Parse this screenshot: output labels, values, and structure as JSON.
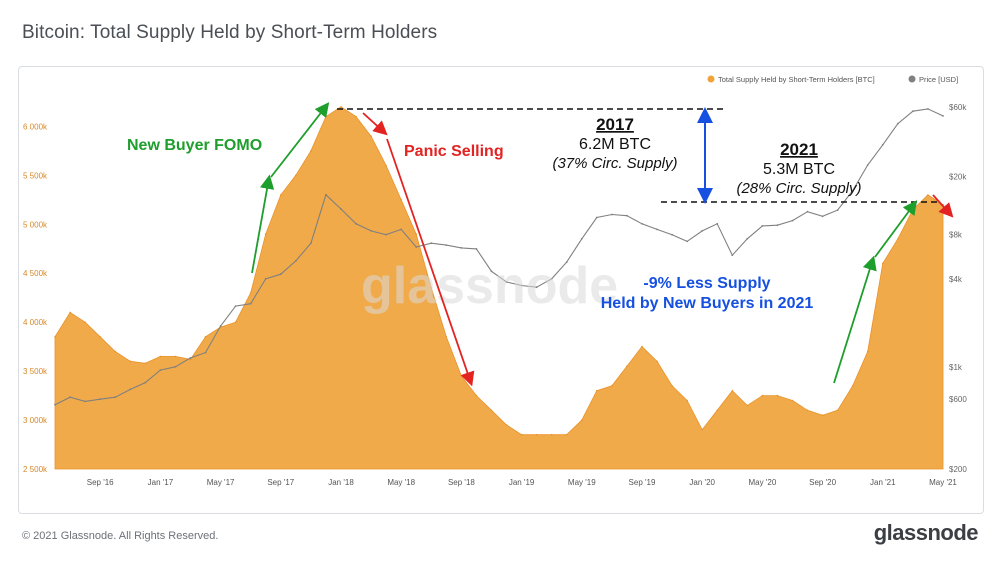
{
  "page": {
    "title": "Bitcoin: Total Supply Held by Short-Term Holders",
    "copyright": "© 2021 Glassnode. All Rights Reserved.",
    "logo": "glassnode",
    "watermark": "glassnode"
  },
  "annotations": {
    "fomo": "New Buyer FOMO",
    "panic": "Panic Selling",
    "y2017_year": "2017",
    "y2017_value": "6.2M BTC",
    "y2017_pct": "(37% Circ. Supply)",
    "y2021_year": "2021",
    "y2021_value": "5.3M BTC",
    "y2021_pct": "(28% Circ. Supply)",
    "less_line1": "-9% Less Supply",
    "less_line2": "Held by New Buyers in 2021"
  },
  "colors": {
    "supply": "#f0a33a",
    "price": "#808080",
    "green": "#1e9e2c",
    "red": "#e32222",
    "blue": "#1550e0"
  },
  "chart_data": {
    "type": "area",
    "x_ticks": [
      "Sep '16",
      "Jan '17",
      "May '17",
      "Sep '17",
      "Jan '18",
      "May '18",
      "Sep '18",
      "Jan '19",
      "May '19",
      "Sep '19",
      "Jan '20",
      "May '20",
      "Sep '20",
      "Jan '21",
      "May '21"
    ],
    "x_domain": [
      "2016-06",
      "2021-05"
    ],
    "y_left_ticks": [
      "2 500k",
      "3 000k",
      "3 500k",
      "4 000k",
      "4 500k",
      "5 000k",
      "5 500k",
      "6 000k"
    ],
    "y_left_range": [
      2500000,
      6300000
    ],
    "y_right_ticks": [
      "$200",
      "$600",
      "$1k",
      "$4k",
      "$8k",
      "$20k",
      "$60k"
    ],
    "y_right_scale": "log",
    "legend_position": "top-right",
    "series": [
      {
        "name": "Total Supply Held by Short-Term Holders [BTC]",
        "axis": "left",
        "x": [
          "2016-06",
          "2016-07",
          "2016-08",
          "2016-09",
          "2016-10",
          "2016-11",
          "2016-12",
          "2017-01",
          "2017-02",
          "2017-03",
          "2017-04",
          "2017-05",
          "2017-06",
          "2017-07",
          "2017-08",
          "2017-09",
          "2017-10",
          "2017-11",
          "2017-12",
          "2018-01",
          "2018-02",
          "2018-03",
          "2018-04",
          "2018-05",
          "2018-06",
          "2018-07",
          "2018-08",
          "2018-09",
          "2018-10",
          "2018-11",
          "2018-12",
          "2019-01",
          "2019-02",
          "2019-03",
          "2019-04",
          "2019-05",
          "2019-06",
          "2019-07",
          "2019-08",
          "2019-09",
          "2019-10",
          "2019-11",
          "2019-12",
          "2020-01",
          "2020-02",
          "2020-03",
          "2020-04",
          "2020-05",
          "2020-06",
          "2020-07",
          "2020-08",
          "2020-09",
          "2020-10",
          "2020-11",
          "2020-12",
          "2021-01",
          "2021-02",
          "2021-03",
          "2021-04",
          "2021-05"
        ],
        "values": [
          3850000,
          4100000,
          4000000,
          3850000,
          3700000,
          3600000,
          3580000,
          3650000,
          3650000,
          3620000,
          3850000,
          3950000,
          4000000,
          4300000,
          4900000,
          5300000,
          5500000,
          5750000,
          6100000,
          6200000,
          6100000,
          5900000,
          5600000,
          5250000,
          4900000,
          4350000,
          3850000,
          3450000,
          3250000,
          3100000,
          2950000,
          2850000,
          2850000,
          2850000,
          2850000,
          3000000,
          3300000,
          3350000,
          3550000,
          3750000,
          3600000,
          3350000,
          3200000,
          2900000,
          3100000,
          3300000,
          3150000,
          3250000,
          3250000,
          3200000,
          3100000,
          3050000,
          3100000,
          3350000,
          3700000,
          4600000,
          4850000,
          5150000,
          5300000,
          5200000
        ],
        "color": "#f0a33a"
      },
      {
        "name": "Price [USD]",
        "axis": "right",
        "x": [
          "2016-06",
          "2016-07",
          "2016-08",
          "2016-09",
          "2016-10",
          "2016-11",
          "2016-12",
          "2017-01",
          "2017-02",
          "2017-03",
          "2017-04",
          "2017-05",
          "2017-06",
          "2017-07",
          "2017-08",
          "2017-09",
          "2017-10",
          "2017-11",
          "2017-12",
          "2018-01",
          "2018-02",
          "2018-03",
          "2018-04",
          "2018-05",
          "2018-06",
          "2018-07",
          "2018-08",
          "2018-09",
          "2018-10",
          "2018-11",
          "2018-12",
          "2019-01",
          "2019-02",
          "2019-03",
          "2019-04",
          "2019-05",
          "2019-06",
          "2019-07",
          "2019-08",
          "2019-09",
          "2019-10",
          "2019-11",
          "2019-12",
          "2020-01",
          "2020-02",
          "2020-03",
          "2020-04",
          "2020-05",
          "2020-06",
          "2020-07",
          "2020-08",
          "2020-09",
          "2020-10",
          "2020-11",
          "2020-12",
          "2021-01",
          "2021-02",
          "2021-03",
          "2021-04",
          "2021-05"
        ],
        "values": [
          550,
          620,
          580,
          600,
          620,
          700,
          780,
          950,
          1000,
          1150,
          1250,
          1900,
          2600,
          2700,
          4000,
          4300,
          5300,
          7000,
          15000,
          12000,
          9500,
          8500,
          8000,
          8700,
          6600,
          7000,
          6800,
          6500,
          6400,
          4500,
          3800,
          3600,
          3500,
          4000,
          5200,
          7500,
          10500,
          11000,
          10800,
          9500,
          8700,
          8000,
          7200,
          8500,
          9500,
          5800,
          7500,
          9200,
          9300,
          10000,
          11500,
          10700,
          11800,
          16000,
          24000,
          33000,
          46000,
          56000,
          58000,
          52000
        ],
        "color": "#808080"
      }
    ]
  },
  "legend": {
    "supply_label": "Total Supply Held by Short-Term Holders [BTC]",
    "price_label": "Price [USD]"
  }
}
